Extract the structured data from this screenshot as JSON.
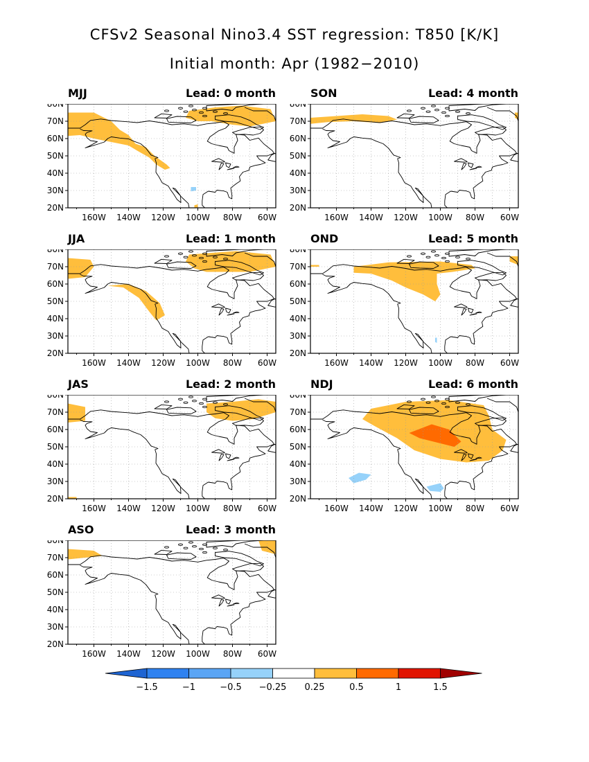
{
  "title": "CFSv2 Seasonal Nino3.4 SST regression: T850 [K/K]",
  "subtitle": "Initial month: Apr (1982−2010)",
  "lat_labels": [
    "80N",
    "70N",
    "60N",
    "50N",
    "40N",
    "30N",
    "20N"
  ],
  "lon_labels": [
    "160W",
    "140W",
    "120W",
    "100W",
    "80W",
    "60W"
  ],
  "panels": [
    {
      "season": "MJJ",
      "lead": "Lead: 0 month"
    },
    {
      "season": "SON",
      "lead": "Lead: 4 month"
    },
    {
      "season": "JJA",
      "lead": "Lead: 1 month"
    },
    {
      "season": "OND",
      "lead": "Lead: 5 month"
    },
    {
      "season": "JAS",
      "lead": "Lead: 2 month"
    },
    {
      "season": "NDJ",
      "lead": "Lead: 6 month"
    },
    {
      "season": "ASO",
      "lead": "Lead: 3 month"
    }
  ],
  "colorbar": {
    "labels": [
      "−1.5",
      "−1",
      "−0.5",
      "−0.25",
      "0.25",
      "0.5",
      "1",
      "1.5"
    ],
    "colors": [
      "#1e64d2",
      "#2f82f0",
      "#5aa5f5",
      "#96d2fa",
      "#ffffff",
      "#ffbe3c",
      "#ff6a00",
      "#e11400",
      "#a00000"
    ]
  },
  "colors": {
    "pos1": "#ffbe3c",
    "pos2": "#ff6a00",
    "neg1": "#96d2fa",
    "land": "#000000",
    "grid": "#999999"
  }
}
